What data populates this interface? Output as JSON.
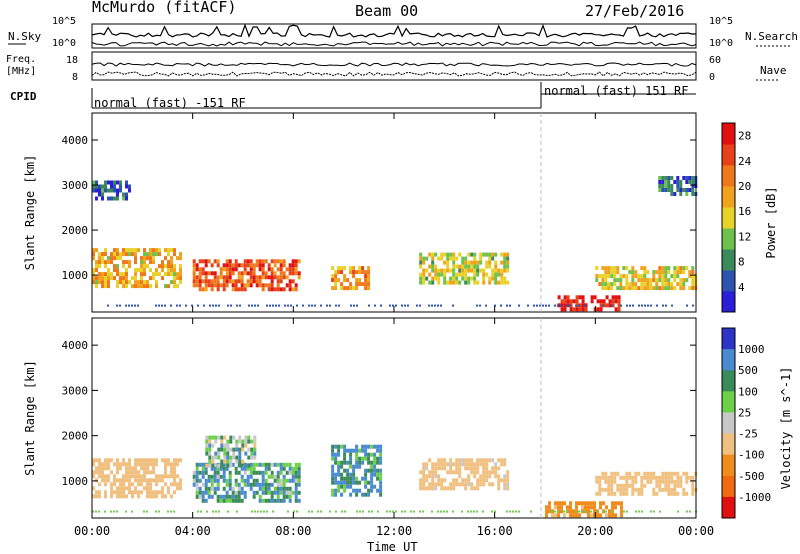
{
  "header": {
    "station": "McMurdo (fitACF)",
    "beam": "Beam 00",
    "date": "27/Feb/2016"
  },
  "panels": {
    "noise": {
      "left_label": "N.Sky",
      "right_label": "N.Search",
      "left_ticks": [
        "10^5",
        "10^0"
      ],
      "right_ticks": [
        "10^5",
        "10^0"
      ]
    },
    "freq": {
      "left_label_top": "Freq.",
      "left_label_bottom": "[MHz]",
      "right_label": "Nave",
      "left_ticks": [
        "18",
        "8"
      ],
      "right_ticks": [
        "60",
        "0"
      ]
    },
    "cpid": {
      "label": "CPID",
      "mode_1": "normal (fast) -151 RF",
      "mode_2": "normal (fast) 151 RF"
    }
  },
  "x_axis": {
    "label": "Time UT",
    "ticks": [
      "00:00",
      "04:00",
      "08:00",
      "12:00",
      "16:00",
      "20:00",
      "00:00"
    ]
  },
  "colors": {
    "power": [
      "#2b1ed8",
      "#2e52b0",
      "#3a8a5c",
      "#6cc24a",
      "#e8d22a",
      "#f0a21c",
      "#f0781c",
      "#e84018",
      "#e01010"
    ],
    "velocity": [
      "#2b33c8",
      "#4a8ad0",
      "#3a8a5c",
      "#6cd04a",
      "#c8c8c8",
      "#f0c080",
      "#f08c1c",
      "#f06a10",
      "#e01010"
    ]
  },
  "chart_data": [
    {
      "type": "heatmap",
      "title": "Power",
      "xlabel": "Time UT",
      "ylabel": "Slant Range [km]",
      "x_ticks": [
        "00:00",
        "04:00",
        "08:00",
        "12:00",
        "16:00",
        "20:00",
        "00:00"
      ],
      "xlim_hours": [
        0,
        24
      ],
      "ylim": [
        180,
        4600
      ],
      "y_ticks": [
        1000,
        2000,
        3000,
        4000
      ],
      "colorbar": {
        "label": "Power [dB]",
        "ticks": [
          4,
          8,
          12,
          16,
          20,
          24,
          28
        ],
        "range": [
          0,
          30
        ]
      },
      "echo_regions": [
        {
          "t_start": 0,
          "t_end": 3.5,
          "r_low": 800,
          "r_high": 1600,
          "value": 18
        },
        {
          "t_start": 4,
          "t_end": 8.2,
          "r_low": 650,
          "r_high": 1350,
          "value": 24
        },
        {
          "t_start": 9.5,
          "t_end": 11,
          "r_low": 700,
          "r_high": 1200,
          "value": 20
        },
        {
          "t_start": 13,
          "t_end": 16.5,
          "r_low": 800,
          "r_high": 1500,
          "value": 14
        },
        {
          "t_start": 18.5,
          "t_end": 21,
          "r_low": 250,
          "r_high": 550,
          "value": 28
        },
        {
          "t_start": 20,
          "t_end": 24,
          "r_low": 700,
          "r_high": 1200,
          "value": 16
        },
        {
          "t_start": 0,
          "t_end": 1.5,
          "r_low": 2700,
          "r_high": 3100,
          "value": 6
        },
        {
          "t_start": 22.5,
          "t_end": 24,
          "r_low": 2800,
          "r_high": 3200,
          "value": 6
        }
      ]
    },
    {
      "type": "heatmap",
      "title": "Velocity",
      "xlabel": "Time UT",
      "ylabel": "Slant Range [km]",
      "x_ticks": [
        "00:00",
        "04:00",
        "08:00",
        "12:00",
        "16:00",
        "20:00",
        "00:00"
      ],
      "xlim_hours": [
        0,
        24
      ],
      "ylim": [
        180,
        4600
      ],
      "y_ticks": [
        1000,
        2000,
        3000,
        4000
      ],
      "colorbar": {
        "label": "Velocity [m s^-1]",
        "ticks": [
          "1000",
          "500",
          "100",
          "25",
          "-25",
          "-100",
          "-500",
          "-1000"
        ]
      },
      "echo_regions": [
        {
          "t_start": 0,
          "t_end": 3.5,
          "r_low": 700,
          "r_high": 1500,
          "value": -300
        },
        {
          "t_start": 4,
          "t_end": 8.2,
          "r_low": 600,
          "r_high": 1400,
          "value": 80
        },
        {
          "t_start": 4.5,
          "t_end": 6.5,
          "r_low": 1300,
          "r_high": 2000,
          "value": 0
        },
        {
          "t_start": 9.5,
          "t_end": 11.5,
          "r_low": 700,
          "r_high": 1800,
          "value": 120
        },
        {
          "t_start": 13,
          "t_end": 16.5,
          "r_low": 800,
          "r_high": 1500,
          "value": -200
        },
        {
          "t_start": 18,
          "t_end": 21,
          "r_low": 250,
          "r_high": 550,
          "value": -600
        },
        {
          "t_start": 20,
          "t_end": 24,
          "r_low": 700,
          "r_high": 1200,
          "value": -300
        }
      ]
    }
  ]
}
